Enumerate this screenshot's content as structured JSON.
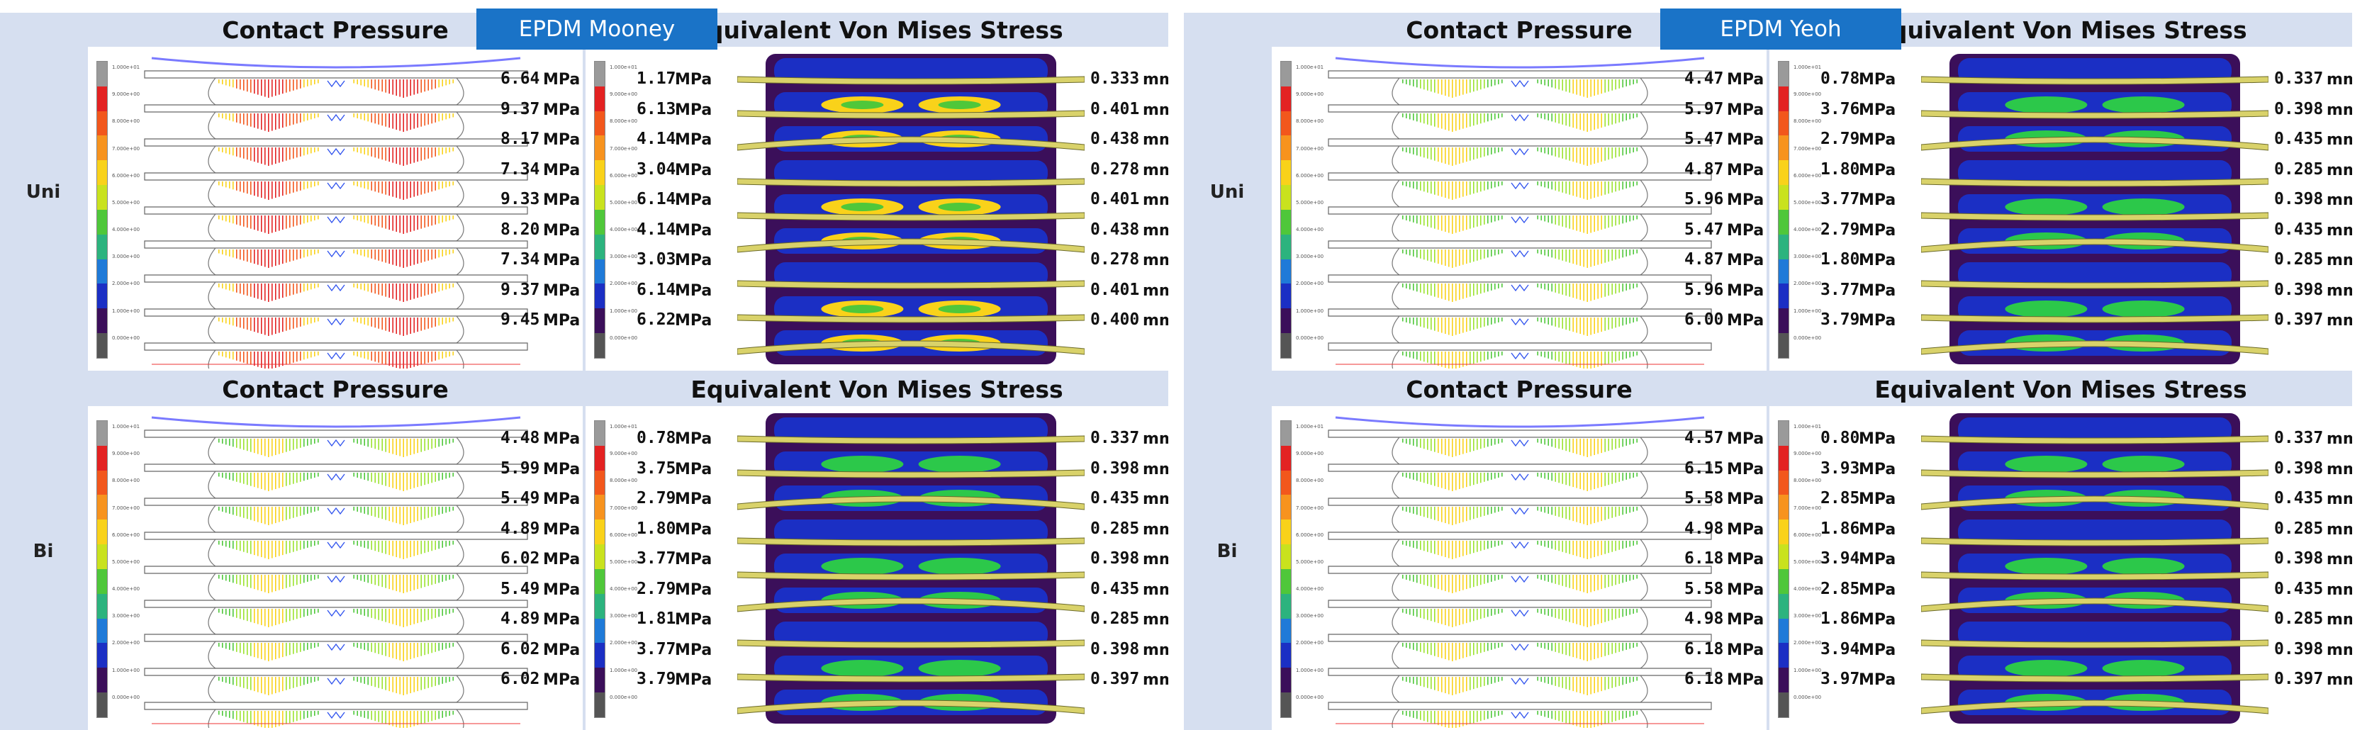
{
  "headers": {
    "contact_pressure": "Contact Pressure",
    "von_mises": "Equivalent Von  Mises Stress"
  },
  "materials": [
    "EPDM Mooney",
    "EPDM Yeoh"
  ],
  "rows": [
    "Uni",
    "Bi"
  ],
  "units": {
    "pressure": "MPa",
    "displacement": "mm"
  },
  "legend": [
    "1.000e+01",
    "9.000e+00",
    "8.000e+00",
    "7.000e+00",
    "6.000e+00",
    "5.000e+00",
    "4.000e+00",
    "3.000e+00",
    "2.000e+00",
    "1.000e+00",
    "0.000e+00"
  ],
  "legend_colors": [
    "#9a9a9a",
    "#e32222",
    "#f2571c",
    "#f7931e",
    "#f9d21a",
    "#c9e21e",
    "#4fc73a",
    "#2cb37e",
    "#1f7ad8",
    "#1b2fc4",
    "#3b0f5a",
    "#555555"
  ],
  "panels": {
    "mooney_uni": {
      "contact": [
        "6.64",
        "9.37",
        "8.17",
        "7.34",
        "9.33",
        "8.20",
        "7.34",
        "9.37",
        "9.45"
      ],
      "stress": [
        "1.17",
        "6.13",
        "4.14",
        "3.04",
        "6.14",
        "4.14",
        "3.03",
        "6.14",
        "6.22"
      ],
      "disp": [
        "0.333",
        "0.401",
        "0.438",
        "0.278",
        "0.401",
        "0.438",
        "0.278",
        "0.401",
        "0.400"
      ]
    },
    "yeoh_uni": {
      "contact": [
        "4.47",
        "5.97",
        "5.47",
        "4.87",
        "5.96",
        "5.47",
        "4.87",
        "5.96",
        "6.00"
      ],
      "stress": [
        "0.78",
        "3.76",
        "2.79",
        "1.80",
        "3.77",
        "2.79",
        "1.80",
        "3.77",
        "3.79"
      ],
      "disp": [
        "0.337",
        "0.398",
        "0.435",
        "0.285",
        "0.398",
        "0.435",
        "0.285",
        "0.398",
        "0.397"
      ]
    },
    "mooney_bi": {
      "contact": [
        "4.48",
        "5.99",
        "5.49",
        "4.89",
        "6.02",
        "5.49",
        "4.89",
        "6.02",
        "6.02"
      ],
      "stress": [
        "0.78",
        "3.75",
        "2.79",
        "1.80",
        "3.77",
        "2.79",
        "1.81",
        "3.77",
        "3.79"
      ],
      "disp": [
        "0.337",
        "0.398",
        "0.435",
        "0.285",
        "0.398",
        "0.435",
        "0.285",
        "0.398",
        "0.397"
      ]
    },
    "yeoh_bi": {
      "contact": [
        "4.57",
        "6.15",
        "5.58",
        "4.98",
        "6.18",
        "5.58",
        "4.98",
        "6.18",
        "6.18"
      ],
      "stress": [
        "0.80",
        "3.93",
        "2.85",
        "1.86",
        "3.94",
        "2.85",
        "1.86",
        "3.94",
        "3.97"
      ],
      "disp": [
        "0.337",
        "0.398",
        "0.435",
        "0.285",
        "0.398",
        "0.435",
        "0.285",
        "0.398",
        "0.397"
      ]
    }
  }
}
